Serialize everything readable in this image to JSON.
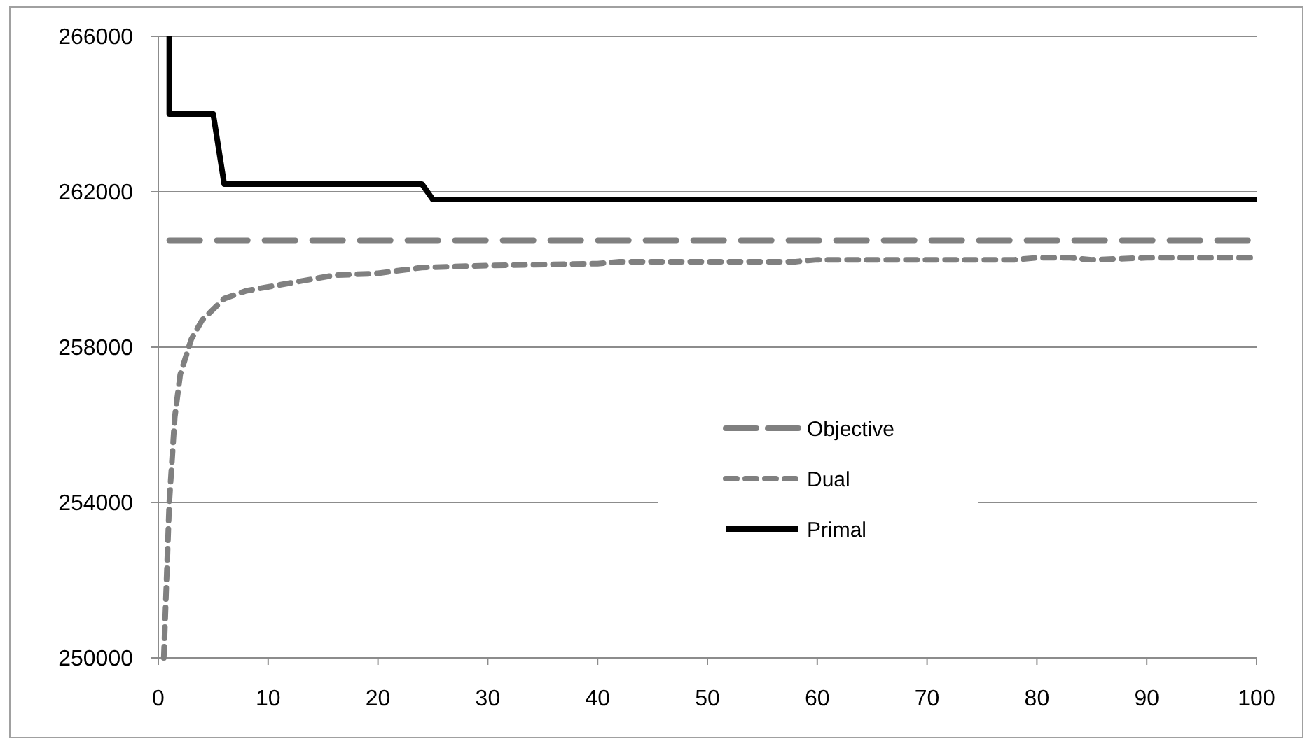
{
  "chart_data": {
    "type": "line",
    "xlim": [
      0,
      100
    ],
    "xticks": [
      0,
      10,
      20,
      30,
      40,
      50,
      60,
      70,
      80,
      90,
      100
    ],
    "ylim": [
      250000,
      266000
    ],
    "yticks": [
      250000,
      254000,
      258000,
      262000,
      266000
    ],
    "grid": "y",
    "legend": "right",
    "series": [
      {
        "name": "Objective",
        "color": "#808080",
        "line_style": "dashed",
        "x": [
          1,
          100
        ],
        "values": [
          260750,
          260750
        ]
      },
      {
        "name": "Dual",
        "color": "#808080",
        "line_style": "dotted",
        "x": [
          0.5,
          1,
          1.5,
          2,
          3,
          4,
          6,
          8,
          10,
          13,
          16,
          20,
          24,
          30,
          40,
          42,
          50,
          58,
          60,
          70,
          78,
          80,
          83,
          85,
          90,
          100
        ],
        "values": [
          250000,
          254000,
          256200,
          257300,
          258200,
          258700,
          259250,
          259450,
          259550,
          259700,
          259850,
          259900,
          260050,
          260100,
          260150,
          260200,
          260200,
          260200,
          260250,
          260250,
          260250,
          260300,
          260300,
          260250,
          260300,
          260300
        ]
      },
      {
        "name": "Primal",
        "color": "#000000",
        "line_style": "solid",
        "x": [
          1,
          1,
          5,
          6,
          24,
          25,
          100
        ],
        "values": [
          266000,
          264000,
          264000,
          262200,
          262200,
          261800,
          261800
        ]
      }
    ]
  }
}
